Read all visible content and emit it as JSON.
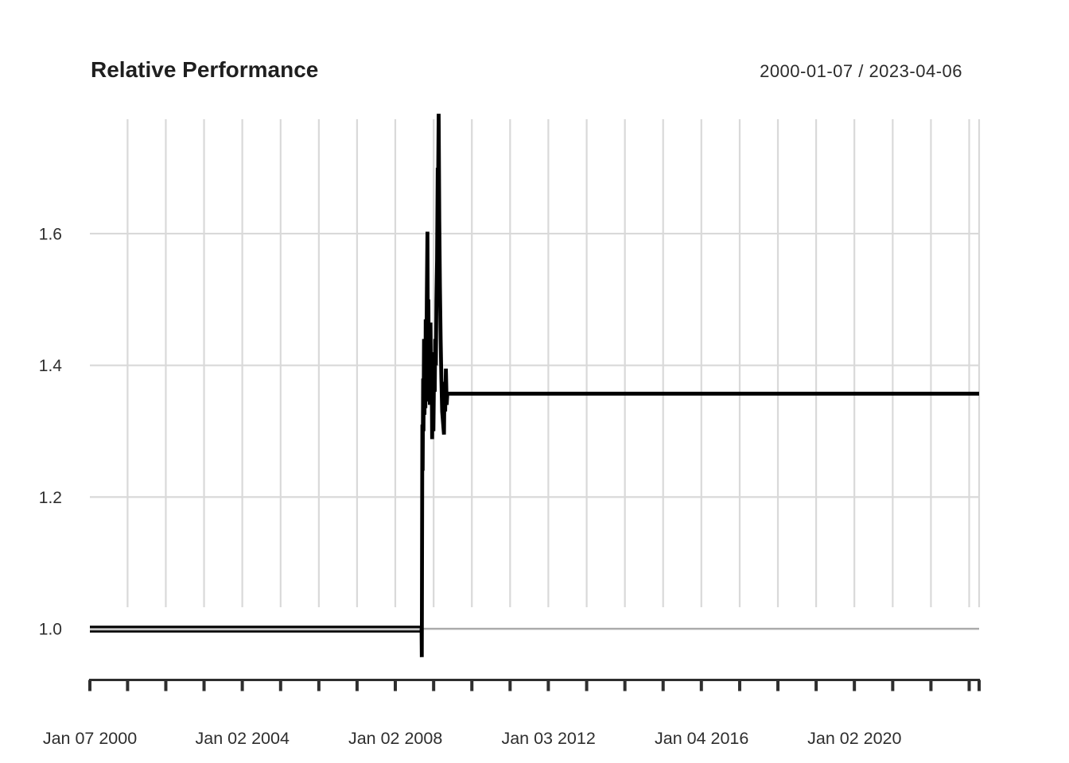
{
  "header": {
    "title": "Relative Performance",
    "date_range": "2000-01-07 / 2023-04-06"
  },
  "chart_data": {
    "type": "line",
    "title": "Relative Performance",
    "subtitle": "2000-01-07 / 2023-04-06",
    "x_domain": [
      "2000-01-07",
      "2023-04-06"
    ],
    "ylim": [
      0.935,
      1.7737
    ],
    "grid": true,
    "legend": "none",
    "colors": {
      "series_line": "#000000",
      "gridline": "#d9d9d9",
      "reference_line_1_0": "#ababab",
      "axis": "#2e2e2e",
      "text": "#2e2e2e",
      "background": "#ffffff"
    },
    "y_axis": {
      "ticks": [
        {
          "label": "1.0",
          "value": 1.0
        },
        {
          "label": "1.2",
          "value": 1.2
        },
        {
          "label": "1.4",
          "value": 1.4
        },
        {
          "label": "1.6",
          "value": 1.6
        }
      ]
    },
    "x_axis": {
      "labels": [
        {
          "label": "Jan 07 2000",
          "date": "2000-01-07"
        },
        {
          "label": "Jan 02 2004",
          "date": "2004-01-02"
        },
        {
          "label": "Jan 02 2008",
          "date": "2008-01-02"
        },
        {
          "label": "Jan 03 2012",
          "date": "2012-01-03"
        },
        {
          "label": "Jan 04 2016",
          "date": "2016-01-04"
        },
        {
          "label": "Jan 02 2020",
          "date": "2020-01-02"
        }
      ],
      "gridline_years": [
        2001,
        2002,
        2003,
        2004,
        2005,
        2006,
        2007,
        2008,
        2009,
        2010,
        2011,
        2012,
        2013,
        2014,
        2015,
        2016,
        2017,
        2018,
        2019,
        2020,
        2021,
        2022,
        2023
      ]
    },
    "series": [
      {
        "name": "baseline_upper",
        "points": [
          [
            "2000-01-07",
            1.003
          ],
          [
            "2008-09-08",
            1.003
          ]
        ]
      },
      {
        "name": "baseline_lower",
        "points": [
          [
            "2000-01-07",
            0.996
          ],
          [
            "2008-09-08",
            0.996
          ]
        ]
      },
      {
        "name": "relative_performance",
        "points": [
          [
            "2008-09-08",
            1.001
          ],
          [
            "2008-09-10",
            0.957
          ],
          [
            "2008-09-15",
            1.31
          ],
          [
            "2008-09-18",
            1.24
          ],
          [
            "2008-09-23",
            1.38
          ],
          [
            "2008-09-26",
            1.3
          ],
          [
            "2008-10-01",
            1.44
          ],
          [
            "2008-10-06",
            1.325
          ],
          [
            "2008-10-09",
            1.4
          ],
          [
            "2008-10-14",
            1.335
          ],
          [
            "2008-10-17",
            1.47
          ],
          [
            "2008-10-22",
            1.36
          ],
          [
            "2008-10-28",
            1.5
          ],
          [
            "2008-11-03",
            1.603
          ],
          [
            "2008-11-07",
            1.44
          ],
          [
            "2008-11-12",
            1.5
          ],
          [
            "2008-11-17",
            1.345
          ],
          [
            "2008-11-21",
            1.43
          ],
          [
            "2008-11-26",
            1.34
          ],
          [
            "2008-12-02",
            1.465
          ],
          [
            "2008-12-08",
            1.36
          ],
          [
            "2008-12-12",
            1.42
          ],
          [
            "2008-12-18",
            1.288
          ],
          [
            "2008-12-23",
            1.35
          ],
          [
            "2008-12-30",
            1.3
          ],
          [
            "2009-01-06",
            1.4
          ],
          [
            "2009-01-12",
            1.36
          ],
          [
            "2009-01-16",
            1.44
          ],
          [
            "2009-01-22",
            1.4
          ],
          [
            "2009-01-28",
            1.5
          ],
          [
            "2009-02-03",
            1.56
          ],
          [
            "2009-02-09",
            1.7
          ],
          [
            "2009-02-12",
            1.66
          ],
          [
            "2009-02-18",
            1.782
          ],
          [
            "2009-02-24",
            1.62
          ],
          [
            "2009-03-02",
            1.52
          ],
          [
            "2009-03-09",
            1.44
          ],
          [
            "2009-03-16",
            1.38
          ],
          [
            "2009-03-23",
            1.33
          ],
          [
            "2009-04-10",
            1.295
          ],
          [
            "2009-04-15",
            1.375
          ],
          [
            "2009-04-21",
            1.33
          ],
          [
            "2009-04-28",
            1.395
          ],
          [
            "2009-05-06",
            1.34
          ],
          [
            "2009-05-12",
            1.357
          ],
          [
            "2023-04-06",
            1.357
          ]
        ]
      }
    ]
  }
}
